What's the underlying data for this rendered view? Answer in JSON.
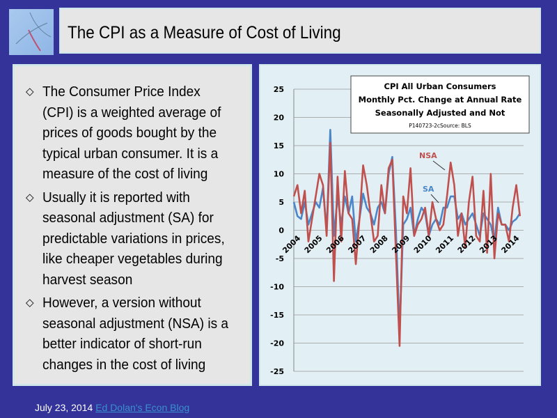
{
  "slide": {
    "title": "The CPI as a Measure of Cost of Living",
    "logo": "economics-graph-thumbnail"
  },
  "bullets": [
    "The Consumer Price Index (CPI) is a weighted average of prices of goods bought by the typical urban consumer. It is a measure of the cost of living",
    "Usually it is reported with seasonal adjustment (SA) for predictable variations in prices, like cheaper vegetables during harvest season",
    "However, a version without seasonal adjustment (NSA) is a better indicator of short-run changes in the cost of living"
  ],
  "footer": {
    "date": "July 23, 2014",
    "link": "Ed Dolan's Econ Blog"
  },
  "chart_data": {
    "type": "line",
    "title": [
      "CPI All Urban Consumers",
      "Monthly Pct. Change at Annual Rate",
      "Seasonally Adjusted and Not"
    ],
    "subtitle": "P140723-2cSource: BLS",
    "ylim": [
      -25,
      25
    ],
    "yticks": [
      25,
      20,
      15,
      10,
      5,
      0,
      -5,
      -10,
      -15,
      -20,
      -25
    ],
    "xticks": [
      "2004",
      "2005",
      "2006",
      "2007",
      "2008",
      "2009",
      "2010",
      "2011",
      "2012",
      "2013",
      "2014"
    ],
    "grid": true,
    "x": [
      "2004-01",
      "2004-03",
      "2004-05",
      "2004-07",
      "2004-09",
      "2004-11",
      "2005-01",
      "2005-03",
      "2005-05",
      "2005-07",
      "2005-09",
      "2005-11",
      "2006-01",
      "2006-03",
      "2006-05",
      "2006-07",
      "2006-09",
      "2006-11",
      "2007-01",
      "2007-03",
      "2007-05",
      "2007-07",
      "2007-09",
      "2007-11",
      "2008-01",
      "2008-03",
      "2008-05",
      "2008-07",
      "2008-09",
      "2008-11",
      "2009-01",
      "2009-03",
      "2009-05",
      "2009-07",
      "2009-09",
      "2009-11",
      "2010-01",
      "2010-03",
      "2010-05",
      "2010-07",
      "2010-09",
      "2010-11",
      "2011-01",
      "2011-03",
      "2011-05",
      "2011-07",
      "2011-09",
      "2011-11",
      "2012-01",
      "2012-03",
      "2012-05",
      "2012-07",
      "2012-09",
      "2012-11",
      "2013-01",
      "2013-03",
      "2013-05",
      "2013-07",
      "2013-09",
      "2013-11",
      "2014-01",
      "2014-03",
      "2014-05"
    ],
    "series": [
      {
        "name": "NSA",
        "color": "#c0504d",
        "values": [
          6,
          8,
          3,
          7,
          -2,
          2,
          6,
          10,
          8,
          -1,
          15.5,
          -9,
          9.5,
          -2,
          10.5,
          3,
          2,
          -6,
          2,
          11.5,
          8,
          3,
          -2,
          -1,
          8,
          3,
          11,
          12.5,
          -4,
          -20.5,
          6,
          3,
          11,
          -1,
          1,
          2,
          4,
          -1,
          5,
          2,
          0,
          1,
          6,
          12,
          8,
          -1,
          3,
          -3,
          5,
          9.5,
          -1,
          -2,
          7,
          -4,
          10,
          -5,
          3,
          1,
          1,
          -2,
          4,
          8,
          2.5
        ]
      },
      {
        "name": "SA",
        "color": "#4a86c8",
        "values": [
          5,
          2.5,
          2,
          5,
          1,
          3,
          5,
          4,
          7.5,
          0,
          17.8,
          -1,
          6,
          1,
          6,
          3,
          6,
          -2,
          2,
          6.5,
          4,
          3,
          1,
          4,
          5,
          3,
          10,
          13,
          0,
          -18,
          1,
          2,
          4,
          -1,
          2,
          4,
          3,
          -1,
          1,
          2,
          1,
          4,
          4,
          6,
          6,
          2,
          3,
          1,
          2,
          3,
          1,
          -1,
          3,
          2,
          1,
          -2,
          4,
          1,
          1,
          0,
          1.5,
          2,
          3
        ]
      }
    ]
  }
}
